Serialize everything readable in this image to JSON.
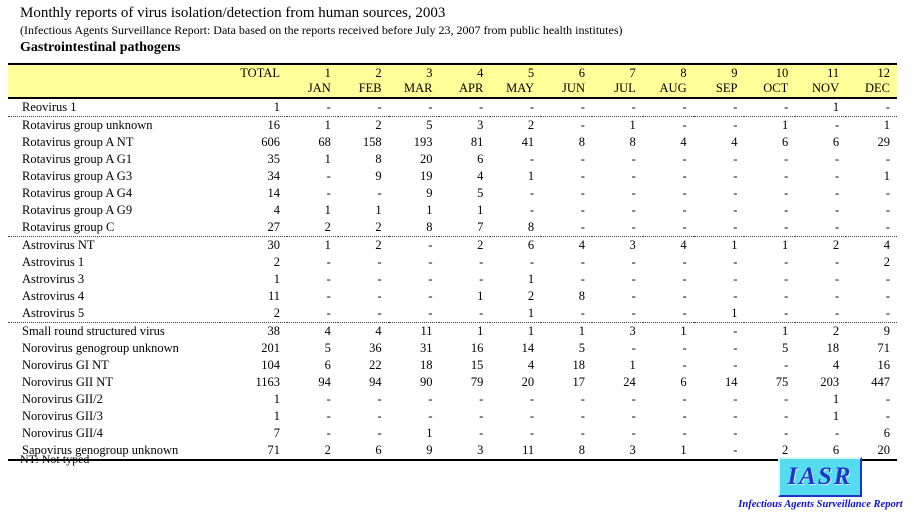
{
  "header": {
    "title": "Monthly reports of virus isolation/detection from human sources, 2003",
    "subtitle": "(Infectious Agents Surveillance Report: Data based on the reports received before July 23, 2007 from public health institutes)",
    "section": "Gastrointestinal pathogens"
  },
  "table": {
    "columns": [
      {
        "line1": "",
        "line2": ""
      },
      {
        "line1": "TOTAL",
        "line2": ""
      },
      {
        "line1": "1",
        "line2": "JAN"
      },
      {
        "line1": "2",
        "line2": "FEB"
      },
      {
        "line1": "3",
        "line2": "MAR"
      },
      {
        "line1": "4",
        "line2": "APR"
      },
      {
        "line1": "5",
        "line2": "MAY"
      },
      {
        "line1": "6",
        "line2": "JUN"
      },
      {
        "line1": "7",
        "line2": "JUL"
      },
      {
        "line1": "8",
        "line2": "AUG"
      },
      {
        "line1": "9",
        "line2": "SEP"
      },
      {
        "line1": "10",
        "line2": "OCT"
      },
      {
        "line1": "11",
        "line2": "NOV"
      },
      {
        "line1": "12",
        "line2": "DEC"
      }
    ],
    "rows": [
      {
        "label": "Reovirus 1",
        "group_start": false,
        "values": [
          "1",
          "-",
          "-",
          "-",
          "-",
          "-",
          "-",
          "-",
          "-",
          "-",
          "-",
          "1",
          "-"
        ]
      },
      {
        "label": "Rotavirus group unknown",
        "group_start": true,
        "values": [
          "16",
          "1",
          "2",
          "5",
          "3",
          "2",
          "-",
          "1",
          "-",
          "-",
          "1",
          "-",
          "1"
        ]
      },
      {
        "label": "Rotavirus group A NT",
        "group_start": false,
        "values": [
          "606",
          "68",
          "158",
          "193",
          "81",
          "41",
          "8",
          "8",
          "4",
          "4",
          "6",
          "6",
          "29"
        ]
      },
      {
        "label": "Rotavirus group A G1",
        "group_start": false,
        "values": [
          "35",
          "1",
          "8",
          "20",
          "6",
          "-",
          "-",
          "-",
          "-",
          "-",
          "-",
          "-",
          "-"
        ]
      },
      {
        "label": "Rotavirus group A G3",
        "group_start": false,
        "values": [
          "34",
          "-",
          "9",
          "19",
          "4",
          "1",
          "-",
          "-",
          "-",
          "-",
          "-",
          "-",
          "1"
        ]
      },
      {
        "label": "Rotavirus group A G4",
        "group_start": false,
        "values": [
          "14",
          "-",
          "-",
          "9",
          "5",
          "-",
          "-",
          "-",
          "-",
          "-",
          "-",
          "-",
          "-"
        ]
      },
      {
        "label": "Rotavirus group A G9",
        "group_start": false,
        "values": [
          "4",
          "1",
          "1",
          "1",
          "1",
          "-",
          "-",
          "-",
          "-",
          "-",
          "-",
          "-",
          "-"
        ]
      },
      {
        "label": "Rotavirus group C",
        "group_start": false,
        "values": [
          "27",
          "2",
          "2",
          "8",
          "7",
          "8",
          "-",
          "-",
          "-",
          "-",
          "-",
          "-",
          "-"
        ]
      },
      {
        "label": "Astrovirus NT",
        "group_start": true,
        "values": [
          "30",
          "1",
          "2",
          "-",
          "2",
          "6",
          "4",
          "3",
          "4",
          "1",
          "1",
          "2",
          "4"
        ]
      },
      {
        "label": "Astrovirus 1",
        "group_start": false,
        "values": [
          "2",
          "-",
          "-",
          "-",
          "-",
          "-",
          "-",
          "-",
          "-",
          "-",
          "-",
          "-",
          "2"
        ]
      },
      {
        "label": "Astrovirus 3",
        "group_start": false,
        "values": [
          "1",
          "-",
          "-",
          "-",
          "-",
          "1",
          "-",
          "-",
          "-",
          "-",
          "-",
          "-",
          "-"
        ]
      },
      {
        "label": "Astrovirus 4",
        "group_start": false,
        "values": [
          "11",
          "-",
          "-",
          "-",
          "1",
          "2",
          "8",
          "-",
          "-",
          "-",
          "-",
          "-",
          "-"
        ]
      },
      {
        "label": "Astrovirus 5",
        "group_start": false,
        "values": [
          "2",
          "-",
          "-",
          "-",
          "-",
          "1",
          "-",
          "-",
          "-",
          "1",
          "-",
          "-",
          "-"
        ]
      },
      {
        "label": "Small round structured virus",
        "group_start": true,
        "values": [
          "38",
          "4",
          "4",
          "11",
          "1",
          "1",
          "1",
          "3",
          "1",
          "-",
          "1",
          "2",
          "9"
        ]
      },
      {
        "label": "Norovirus genogroup unknown",
        "group_start": false,
        "values": [
          "201",
          "5",
          "36",
          "31",
          "16",
          "14",
          "5",
          "-",
          "-",
          "-",
          "5",
          "18",
          "71"
        ]
      },
      {
        "label": "Norovirus GI NT",
        "group_start": false,
        "values": [
          "104",
          "6",
          "22",
          "18",
          "15",
          "4",
          "18",
          "1",
          "-",
          "-",
          "-",
          "4",
          "16"
        ]
      },
      {
        "label": "Norovirus GII NT",
        "group_start": false,
        "values": [
          "1163",
          "94",
          "94",
          "90",
          "79",
          "20",
          "17",
          "24",
          "6",
          "14",
          "75",
          "203",
          "447"
        ]
      },
      {
        "label": "Norovirus GII/2",
        "group_start": false,
        "values": [
          "1",
          "-",
          "-",
          "-",
          "-",
          "-",
          "-",
          "-",
          "-",
          "-",
          "-",
          "1",
          "-"
        ]
      },
      {
        "label": "Norovirus GII/3",
        "group_start": false,
        "values": [
          "1",
          "-",
          "-",
          "-",
          "-",
          "-",
          "-",
          "-",
          "-",
          "-",
          "-",
          "1",
          "-"
        ]
      },
      {
        "label": "Norovirus GII/4",
        "group_start": false,
        "values": [
          "7",
          "-",
          "-",
          "1",
          "-",
          "-",
          "-",
          "-",
          "-",
          "-",
          "-",
          "-",
          "6"
        ]
      },
      {
        "label": "Sapovirus genogroup unknown",
        "group_start": false,
        "values": [
          "71",
          "2",
          "6",
          "9",
          "3",
          "11",
          "8",
          "3",
          "1",
          "-",
          "2",
          "6",
          "20"
        ]
      }
    ]
  },
  "footnote": "NT: Not typed",
  "logo": {
    "text": "IASR",
    "caption": "Infectious Agents Surveillance Report"
  },
  "colors": {
    "table_header_bg": "#FFFF99",
    "logo_bg": "#55DDEF",
    "logo_text": "#2233CC",
    "caption_color": "#1111CC"
  }
}
